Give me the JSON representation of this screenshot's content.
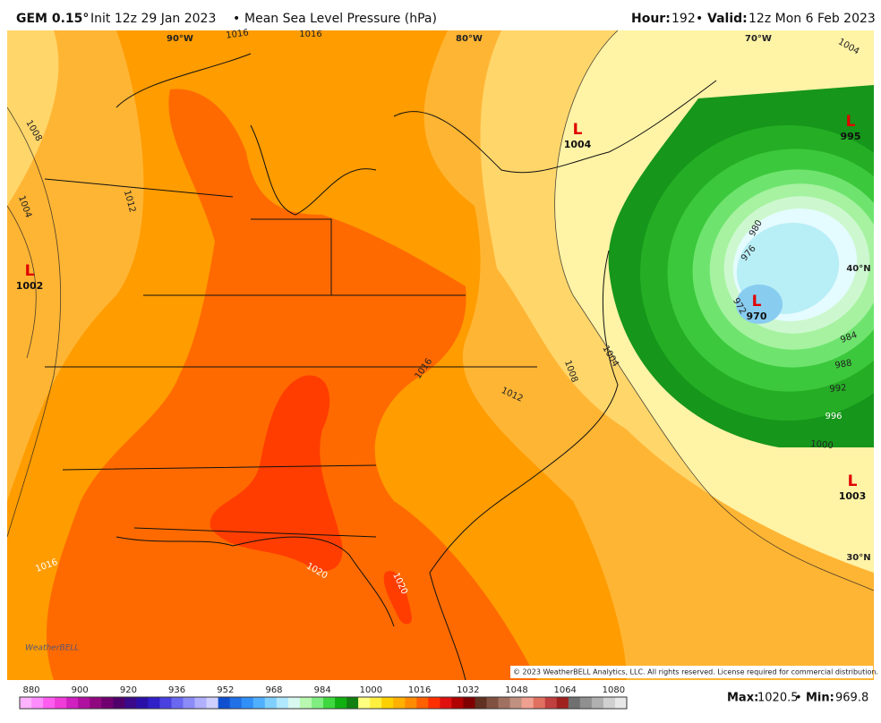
{
  "header": {
    "model": "GEM 0.15°",
    "init": "Init 12z 29 Jan 2023",
    "sep": "•",
    "field": "Mean Sea Level Pressure (hPa)",
    "hour_label": "Hour:",
    "hour": 192,
    "sep2": "•",
    "valid_label": "Valid:",
    "valid": "12z Mon 6 Feb 2023"
  },
  "map": {
    "geo_labels": [
      "90°W",
      "80°W",
      "70°W",
      "40°N",
      "30°N"
    ],
    "isobar_labels": [
      "1016",
      "1016",
      "1008",
      "1004",
      "1012",
      "1004",
      "1016",
      "1012",
      "1008",
      "1004",
      "1000",
      "996",
      "992",
      "988",
      "984",
      "980",
      "976",
      "972",
      "1016",
      "1020",
      "1020"
    ],
    "lows": [
      {
        "symbol": "L",
        "value": 1004
      },
      {
        "symbol": "L",
        "value": 995
      },
      {
        "symbol": "L",
        "value": 1002
      },
      {
        "symbol": "L",
        "value": 970
      },
      {
        "symbol": "L",
        "value": 1003
      }
    ],
    "copyright": "© 2023 WeatherBELL Analytics, LLC. All rights reserved. License required for commercial distribution.",
    "logo": "WeatherBELL"
  },
  "colorbar": {
    "labels": [
      880,
      900,
      920,
      936,
      952,
      968,
      984,
      1000,
      1016,
      1032,
      1048,
      1064,
      1080
    ]
  },
  "footer": {
    "max_label": "Max:",
    "max": 1020.5,
    "sep": "•",
    "min_label": "Min:",
    "min": 969.8
  }
}
